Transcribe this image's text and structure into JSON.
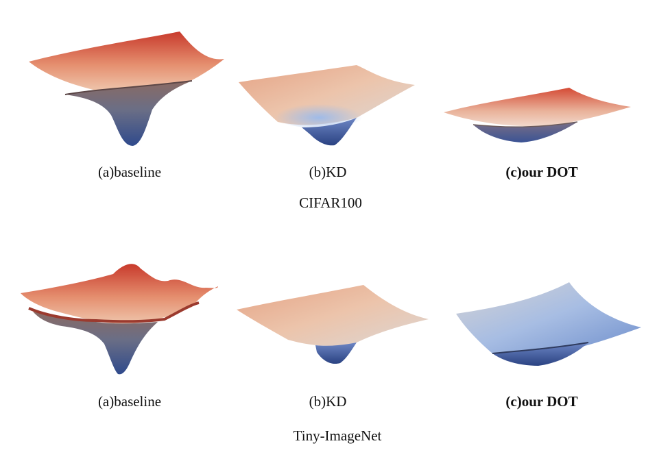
{
  "rows": [
    {
      "captions": [
        "(a)baseline",
        "(b)KD",
        "(c)our DOT"
      ],
      "group_label": "CIFAR100"
    },
    {
      "captions": [
        "(a)baseline",
        "(b)KD",
        "(c)our DOT"
      ],
      "group_label": "Tiny-ImageNet"
    }
  ],
  "colors": {
    "red": "#d0462f",
    "peach": "#eab89a",
    "cream": "#e9dccf",
    "light-blue": "#a9c1e6",
    "blue": "#3f5d9a",
    "dark-blue": "#23366b"
  }
}
